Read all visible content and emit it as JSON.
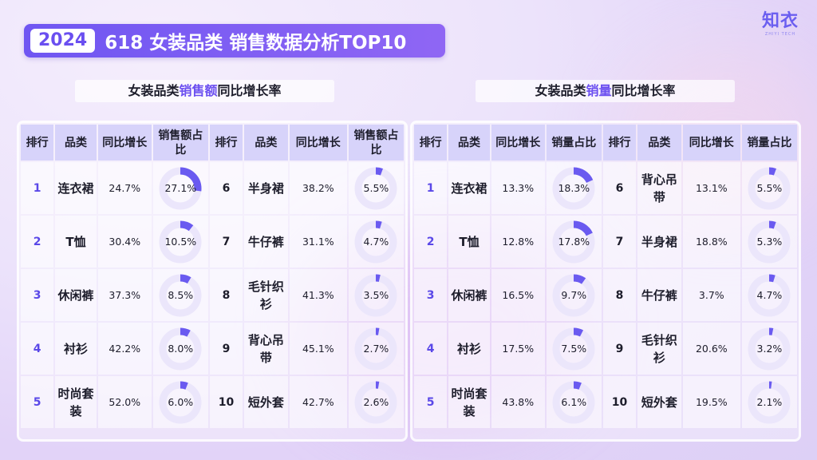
{
  "title": {
    "year": "2024",
    "text": "618 女装品类 销售数据分析TOP10"
  },
  "logo": {
    "main": "知衣",
    "sub": "ZHIYI TECH"
  },
  "colors": {
    "accent": "#6b4ff0",
    "ring_track": "#ebe6fb",
    "ring_fill": "#6a5af0"
  },
  "left": {
    "title_pre": "女装品类",
    "title_hl": "销售额",
    "title_post": "同比增长率",
    "headers": [
      "排行",
      "品类",
      "同比增长",
      "销售额占比",
      "排行",
      "品类",
      "同比增长",
      "销售额占比"
    ],
    "rows": [
      {
        "r1": "1",
        "c1": "连衣裙",
        "g1": "24.7%",
        "p1": "27.1%",
        "v1": 27.1,
        "r2": "6",
        "c2": "半身裙",
        "g2": "38.2%",
        "p2": "5.5%",
        "v2": 5.5
      },
      {
        "r1": "2",
        "c1": "T恤",
        "g1": "30.4%",
        "p1": "10.5%",
        "v1": 10.5,
        "r2": "7",
        "c2": "牛仔裤",
        "g2": "31.1%",
        "p2": "4.7%",
        "v2": 4.7
      },
      {
        "r1": "3",
        "c1": "休闲裤",
        "g1": "37.3%",
        "p1": "8.5%",
        "v1": 8.5,
        "r2": "8",
        "c2": "毛针织衫",
        "g2": "41.3%",
        "p2": "3.5%",
        "v2": 3.5
      },
      {
        "r1": "4",
        "c1": "衬衫",
        "g1": "42.2%",
        "p1": "8.0%",
        "v1": 8.0,
        "r2": "9",
        "c2": "背心吊带",
        "g2": "45.1%",
        "p2": "2.7%",
        "v2": 2.7
      },
      {
        "r1": "5",
        "c1": "时尚套装",
        "g1": "52.0%",
        "p1": "6.0%",
        "v1": 6.0,
        "r2": "10",
        "c2": "短外套",
        "g2": "42.7%",
        "p2": "2.6%",
        "v2": 2.6
      }
    ]
  },
  "right": {
    "title_pre": "女装品类",
    "title_hl": "销量",
    "title_post": "同比增长率",
    "headers": [
      "排行",
      "品类",
      "同比增长",
      "销量占比",
      "排行",
      "品类",
      "同比增长",
      "销量占比"
    ],
    "rows": [
      {
        "r1": "1",
        "c1": "连衣裙",
        "g1": "13.3%",
        "p1": "18.3%",
        "v1": 18.3,
        "r2": "6",
        "c2": "背心吊带",
        "g2": "13.1%",
        "p2": "5.5%",
        "v2": 5.5
      },
      {
        "r1": "2",
        "c1": "T恤",
        "g1": "12.8%",
        "p1": "17.8%",
        "v1": 17.8,
        "r2": "7",
        "c2": "半身裙",
        "g2": "18.8%",
        "p2": "5.3%",
        "v2": 5.3
      },
      {
        "r1": "3",
        "c1": "休闲裤",
        "g1": "16.5%",
        "p1": "9.7%",
        "v1": 9.7,
        "r2": "8",
        "c2": "牛仔裤",
        "g2": "3.7%",
        "p2": "4.7%",
        "v2": 4.7
      },
      {
        "r1": "4",
        "c1": "衬衫",
        "g1": "17.5%",
        "p1": "7.5%",
        "v1": 7.5,
        "r2": "9",
        "c2": "毛针织衫",
        "g2": "20.6%",
        "p2": "3.2%",
        "v2": 3.2
      },
      {
        "r1": "5",
        "c1": "时尚套装",
        "g1": "43.8%",
        "p1": "6.1%",
        "v1": 6.1,
        "r2": "10",
        "c2": "短外套",
        "g2": "19.5%",
        "p2": "2.1%",
        "v2": 2.1
      }
    ]
  }
}
